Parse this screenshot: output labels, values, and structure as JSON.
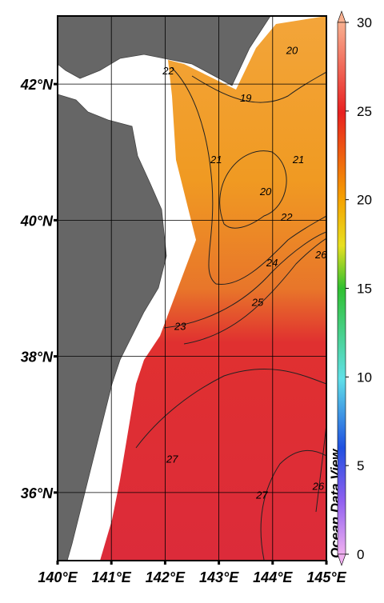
{
  "map": {
    "lonlim": [
      140,
      145
    ],
    "latlim": [
      35,
      43
    ],
    "lon_ticks": [
      {
        "value": 140,
        "label": "140°E"
      },
      {
        "value": 141,
        "label": "141°E"
      },
      {
        "value": 142,
        "label": "142°E"
      },
      {
        "value": 143,
        "label": "143°E"
      },
      {
        "value": 144,
        "label": "144°E"
      },
      {
        "value": 145,
        "label": "145°E"
      }
    ],
    "lat_ticks": [
      {
        "value": 36,
        "label": "36°N"
      },
      {
        "value": 38,
        "label": "38°N"
      },
      {
        "value": 40,
        "label": "40°N"
      },
      {
        "value": 42,
        "label": "42°N"
      }
    ],
    "contour_labels": [
      {
        "value": 19,
        "lon": 143.5,
        "lat": 41.8
      },
      {
        "value": 20,
        "lon": 144.36,
        "lat": 42.5
      },
      {
        "value": 20,
        "lon": 143.87,
        "lat": 40.43
      },
      {
        "value": 21,
        "lon": 142.95,
        "lat": 40.9
      },
      {
        "value": 21,
        "lon": 144.48,
        "lat": 40.9
      },
      {
        "value": 22,
        "lon": 144.26,
        "lat": 40.05
      },
      {
        "value": 22,
        "lon": 142.06,
        "lat": 42.2
      },
      {
        "value": 23,
        "lon": 142.28,
        "lat": 38.45
      },
      {
        "value": 24,
        "lon": 143.99,
        "lat": 39.38
      },
      {
        "value": 25,
        "lon": 143.72,
        "lat": 38.8
      },
      {
        "value": 26,
        "lon": 144.9,
        "lat": 39.5
      },
      {
        "value": 27,
        "lon": 142.13,
        "lat": 36.5
      },
      {
        "value": 27,
        "lon": 143.8,
        "lat": 35.97
      },
      {
        "value": 26,
        "lon": 144.85,
        "lat": 36.1
      }
    ],
    "colorbar": {
      "lim": [
        0,
        30
      ],
      "ticks": [
        0,
        5,
        10,
        15,
        20,
        25,
        30
      ]
    },
    "credit": "Ocean Data View"
  }
}
